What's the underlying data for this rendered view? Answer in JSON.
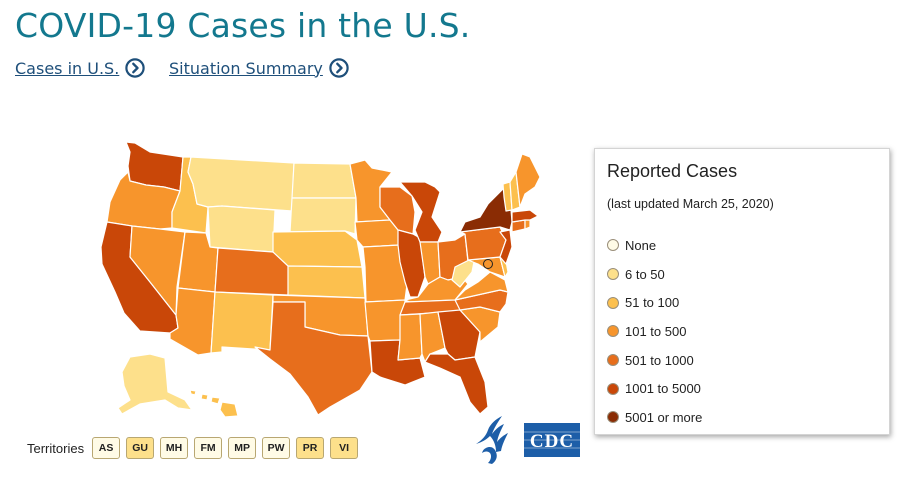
{
  "page": {
    "title": "COVID-19 Cases in the U.S."
  },
  "nav": [
    {
      "label": "Cases in U.S."
    },
    {
      "label": "Situation Summary"
    }
  ],
  "legend": {
    "title": "Reported Cases",
    "subtitle": "(last updated March 25, 2020)",
    "items": [
      {
        "label": "None",
        "color": "#fffbe6"
      },
      {
        "label": "6 to 50",
        "color": "#fde08b"
      },
      {
        "label": "51 to 100",
        "color": "#fcc04e"
      },
      {
        "label": "101 to 500",
        "color": "#f7952c"
      },
      {
        "label": "501 to 1000",
        "color": "#e76e1c"
      },
      {
        "label": "1001 to 5000",
        "color": "#c94708"
      },
      {
        "label": "5001 or more",
        "color": "#8a2c04"
      }
    ]
  },
  "territories": {
    "label": "Territories",
    "items": [
      {
        "code": "AS",
        "color": "#fffbe6"
      },
      {
        "code": "GU",
        "color": "#fde08b"
      },
      {
        "code": "MH",
        "color": "#fffbe6"
      },
      {
        "code": "FM",
        "color": "#fffbe6"
      },
      {
        "code": "MP",
        "color": "#fffbe6"
      },
      {
        "code": "PW",
        "color": "#fffbe6"
      },
      {
        "code": "PR",
        "color": "#fde08b"
      },
      {
        "code": "VI",
        "color": "#fde08b"
      }
    ]
  },
  "states": {
    "WA": {
      "name": "Washington",
      "bin": "1001 to 5000"
    },
    "OR": {
      "name": "Oregon",
      "bin": "101 to 500"
    },
    "CA": {
      "name": "California",
      "bin": "1001 to 5000"
    },
    "ID": {
      "name": "Idaho",
      "bin": "51 to 100"
    },
    "NV": {
      "name": "Nevada",
      "bin": "101 to 500"
    },
    "MT": {
      "name": "Montana",
      "bin": "6 to 50"
    },
    "WY": {
      "name": "Wyoming",
      "bin": "6 to 50"
    },
    "UT": {
      "name": "Utah",
      "bin": "101 to 500"
    },
    "AZ": {
      "name": "Arizona",
      "bin": "101 to 500"
    },
    "CO": {
      "name": "Colorado",
      "bin": "501 to 1000"
    },
    "NM": {
      "name": "New Mexico",
      "bin": "51 to 100"
    },
    "ND": {
      "name": "North Dakota",
      "bin": "6 to 50"
    },
    "SD": {
      "name": "South Dakota",
      "bin": "6 to 50"
    },
    "NE": {
      "name": "Nebraska",
      "bin": "51 to 100"
    },
    "KS": {
      "name": "Kansas",
      "bin": "51 to 100"
    },
    "OK": {
      "name": "Oklahoma",
      "bin": "101 to 500"
    },
    "TX": {
      "name": "Texas",
      "bin": "501 to 1000"
    },
    "MN": {
      "name": "Minnesota",
      "bin": "101 to 500"
    },
    "IA": {
      "name": "Iowa",
      "bin": "101 to 500"
    },
    "MO": {
      "name": "Missouri",
      "bin": "101 to 500"
    },
    "AR": {
      "name": "Arkansas",
      "bin": "101 to 500"
    },
    "LA": {
      "name": "Louisiana",
      "bin": "1001 to 5000"
    },
    "WI": {
      "name": "Wisconsin",
      "bin": "501 to 1000"
    },
    "IL": {
      "name": "Illinois",
      "bin": "1001 to 5000"
    },
    "MI": {
      "name": "Michigan",
      "bin": "1001 to 5000"
    },
    "IN": {
      "name": "Indiana",
      "bin": "101 to 500"
    },
    "OH": {
      "name": "Ohio",
      "bin": "501 to 1000"
    },
    "KY": {
      "name": "Kentucky",
      "bin": "101 to 500"
    },
    "TN": {
      "name": "Tennessee",
      "bin": "501 to 1000"
    },
    "MS": {
      "name": "Mississippi",
      "bin": "101 to 500"
    },
    "AL": {
      "name": "Alabama",
      "bin": "101 to 500"
    },
    "GA": {
      "name": "Georgia",
      "bin": "1001 to 5000"
    },
    "FL": {
      "name": "Florida",
      "bin": "1001 to 5000"
    },
    "SC": {
      "name": "South Carolina",
      "bin": "101 to 500"
    },
    "NC": {
      "name": "North Carolina",
      "bin": "501 to 1000"
    },
    "VA": {
      "name": "Virginia",
      "bin": "101 to 500"
    },
    "WV": {
      "name": "West Virginia",
      "bin": "6 to 50"
    },
    "PA": {
      "name": "Pennsylvania",
      "bin": "501 to 1000"
    },
    "NY": {
      "name": "New York",
      "bin": "5001 or more"
    },
    "NJ": {
      "name": "New Jersey",
      "bin": "1001 to 5000"
    },
    "DE": {
      "name": "Delaware",
      "bin": "51 to 100"
    },
    "MD": {
      "name": "Maryland",
      "bin": "101 to 500"
    },
    "DC": {
      "name": "District of Columbia",
      "bin": "101 to 500"
    },
    "CT": {
      "name": "Connecticut",
      "bin": "501 to 1000"
    },
    "RI": {
      "name": "Rhode Island",
      "bin": "101 to 500"
    },
    "MA": {
      "name": "Massachusetts",
      "bin": "1001 to 5000"
    },
    "VT": {
      "name": "Vermont",
      "bin": "51 to 100"
    },
    "NH": {
      "name": "New Hampshire",
      "bin": "51 to 100"
    },
    "ME": {
      "name": "Maine",
      "bin": "101 to 500"
    },
    "AK": {
      "name": "Alaska",
      "bin": "6 to 50"
    },
    "HI": {
      "name": "Hawaii",
      "bin": "51 to 100"
    }
  }
}
